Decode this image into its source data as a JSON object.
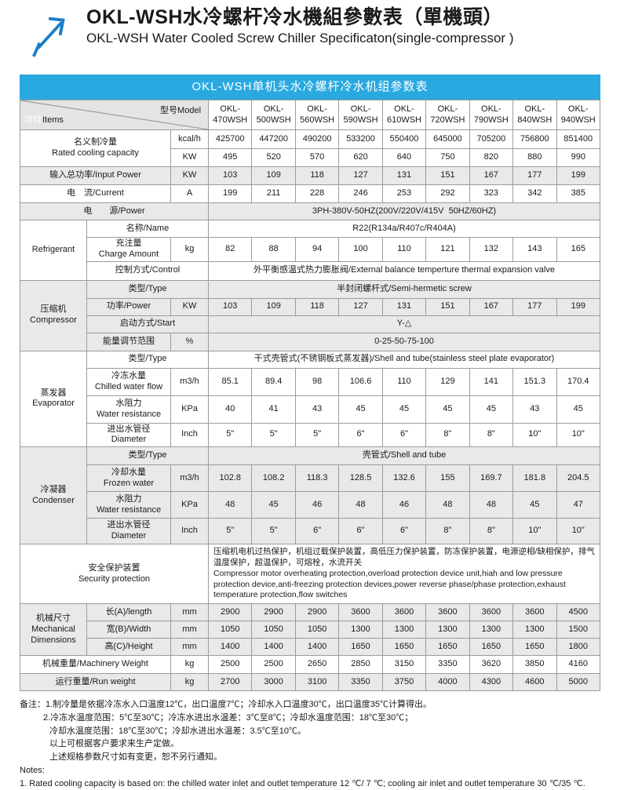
{
  "page": {
    "title_zh": "OKL-WSH水冷螺杆冷水機組參數表（單機頭）",
    "title_en": "OKL-WSH Water Cooled Screw Chiller Specificaton(single-compressor )",
    "banner": "OKL-WSH单机头水冷螺杆冷水机组参数表"
  },
  "colors": {
    "banner_bg": "#29a9e0",
    "arrow_blue": "#1a7ec5",
    "band_grey": "#e9e9e9",
    "border_grey": "#9c9c9c"
  },
  "corner": {
    "items_zh": "项目",
    "items_en": "Items",
    "model": "型号Model"
  },
  "models": [
    "OKL-\n470WSH",
    "OKL-\n500WSH",
    "OKL-\n560WSH",
    "OKL-\n590WSH",
    "OKL-\n610WSH",
    "OKL-\n720WSH",
    "OKL-\n790WSH",
    "OKL-\n840WSH",
    "OKL-\n940WSH"
  ],
  "rows": {
    "cooling": {
      "label": "名义制冷量\nRated cooling capacity",
      "unit1": "kcal/h",
      "values1": [
        "425700",
        "447200",
        "490200",
        "533200",
        "550400",
        "645000",
        "705200",
        "756800",
        "851400"
      ],
      "unit2": "KW",
      "values2": [
        "495",
        "520",
        "570",
        "620",
        "640",
        "750",
        "820",
        "880",
        "990"
      ]
    },
    "input_power": {
      "label": "输入总功率/Input Power",
      "unit": "KW",
      "values": [
        "103",
        "109",
        "118",
        "127",
        "131",
        "151",
        "167",
        "177",
        "199"
      ]
    },
    "current": {
      "label": "电　流/Current",
      "unit": "A",
      "values": [
        "199",
        "211",
        "228",
        "246",
        "253",
        "292",
        "323",
        "342",
        "385"
      ]
    },
    "power_source": {
      "label": "电　　源/Power",
      "value": "3PH-380V-50HZ(200V/220V/415V  50HZ/60HZ)"
    },
    "refrigerant": {
      "group": "Refrigerant",
      "name": {
        "label": "名称/Name",
        "value": "R22(R134a/R407c/R404A)"
      },
      "charge": {
        "label": "充注量\nCharge Amount",
        "unit": "kg",
        "values": [
          "82",
          "88",
          "94",
          "100",
          "110",
          "121",
          "132",
          "143",
          "165"
        ]
      },
      "control": {
        "label": "控制方式/Control",
        "value": "外平衡感温式热力膨胀阀/External balance temperture thermal expansion valve"
      }
    },
    "compressor": {
      "group": "压缩机\nCompressor",
      "type": {
        "label": "类型/Type",
        "value": "半封闭螺杆式/Semi-hermetic screw"
      },
      "power": {
        "label": "功率/Power",
        "unit": "KW",
        "values": [
          "103",
          "109",
          "118",
          "127",
          "131",
          "151",
          "167",
          "177",
          "199"
        ]
      },
      "start": {
        "label": "启动方式/Start",
        "value": "Y-△"
      },
      "energy": {
        "label": "能量调节范围",
        "unit": "%",
        "value": "0-25-50-75-100"
      }
    },
    "evaporator": {
      "group": "蒸发器\nEvaporator",
      "type": {
        "label": "类型/Type",
        "value": "干式壳管式(不锈钢板式蒸发器)/Shell and tube(stainless steel plate evaporator)"
      },
      "flow": {
        "label": "冷冻水量\nChilled water flow",
        "unit": "m3/h",
        "values": [
          "85.1",
          "89.4",
          "98",
          "106.6",
          "110",
          "129",
          "141",
          "151.3",
          "170.4"
        ]
      },
      "resistance": {
        "label": "水阻力\nWater resistance",
        "unit": "KPa",
        "values": [
          "40",
          "41",
          "43",
          "45",
          "45",
          "45",
          "45",
          "43",
          "45"
        ]
      },
      "diameter": {
        "label": "进出水管径\nDiameter",
        "unit": "Inch",
        "values": [
          "5\"",
          "5\"",
          "5\"",
          "6\"",
          "6\"",
          "8\"",
          "8\"",
          "10\"",
          "10\""
        ]
      }
    },
    "condenser": {
      "group": "冷凝器\nCondenser",
      "type": {
        "label": "类型/Type",
        "value": "壳管式/Shell and tube"
      },
      "flow": {
        "label": "冷却水量\nFrozen water",
        "unit": "m3/h",
        "values": [
          "102.8",
          "108.2",
          "118.3",
          "128.5",
          "132.6",
          "155",
          "169.7",
          "181.8",
          "204.5"
        ]
      },
      "resistance": {
        "label": "水阻力\nWater resistance",
        "unit": "KPa",
        "values": [
          "48",
          "45",
          "46",
          "48",
          "46",
          "48",
          "48",
          "45",
          "47"
        ]
      },
      "diameter": {
        "label": "进出水管径\nDiameter",
        "unit": "Inch",
        "values": [
          "5\"",
          "5\"",
          "6\"",
          "6\"",
          "6\"",
          "8\"",
          "8\"",
          "10\"",
          "10\""
        ]
      }
    },
    "security": {
      "label": "安全保护装置\nSecurity protection",
      "value": "压缩机电机过热保护，机组过载保护装置，高低压力保护装置，防冻保护装置，电源逆相/缺相保护，排气温度保护，超温保护，可熔栓，水流开关\nCompressor motor overheating protection,overload protection device unit,hiah and low pressure protection device,anti-freezing protection devices,power reverse phase/phase protection,exhaust temperature protection,flow switches"
    },
    "dimensions": {
      "group": "机械尺寸\nMechanical\nDimensions",
      "length": {
        "label": "长(A)/length",
        "unit": "mm",
        "values": [
          "2900",
          "2900",
          "2900",
          "3600",
          "3600",
          "3600",
          "3600",
          "3600",
          "4500"
        ]
      },
      "width": {
        "label": "宽(B)/Width",
        "unit": "mm",
        "values": [
          "1050",
          "1050",
          "1050",
          "1300",
          "1300",
          "1300",
          "1300",
          "1300",
          "1500"
        ]
      },
      "height": {
        "label": "高(C)/Height",
        "unit": "mm",
        "values": [
          "1400",
          "1400",
          "1400",
          "1650",
          "1650",
          "1650",
          "1650",
          "1650",
          "1800"
        ]
      }
    },
    "machinery_weight": {
      "label": "机械重量/Machinery Weight",
      "unit": "kg",
      "values": [
        "2500",
        "2500",
        "2650",
        "2850",
        "3150",
        "3350",
        "3620",
        "3850",
        "4160"
      ]
    },
    "run_weight": {
      "label": "运行重量/Run weight",
      "unit": "kg",
      "values": [
        "2700",
        "3000",
        "3100",
        "3350",
        "3750",
        "4000",
        "4300",
        "4600",
        "5000"
      ]
    }
  },
  "notes": {
    "lines": [
      "备注：1.制冷量是依据冷冻水入口温度12℃，出口温度7℃；冷却水入口温度30℃，出口温度35℃计算得出。",
      "2.冷冻水温度范围：5℃至30℃；冷冻水进出水温差：3℃至8℃；冷却水温度范围：18℃至30℃；",
      "冷却水温度范围：18℃至30℃；冷却水进出水温差：3.5℃至10℃。",
      "以上可根据客户要求来生产定做。",
      "上述规格参数尺寸如有变更，恕不另行通知。",
      "Notes:",
      "1. Rated cooling capacity is based on: the chilled water inlet and outlet temperature 12 ℃/ 7 ℃; cooling air inlet and outlet temperature 30 ℃/35 ℃."
    ]
  }
}
